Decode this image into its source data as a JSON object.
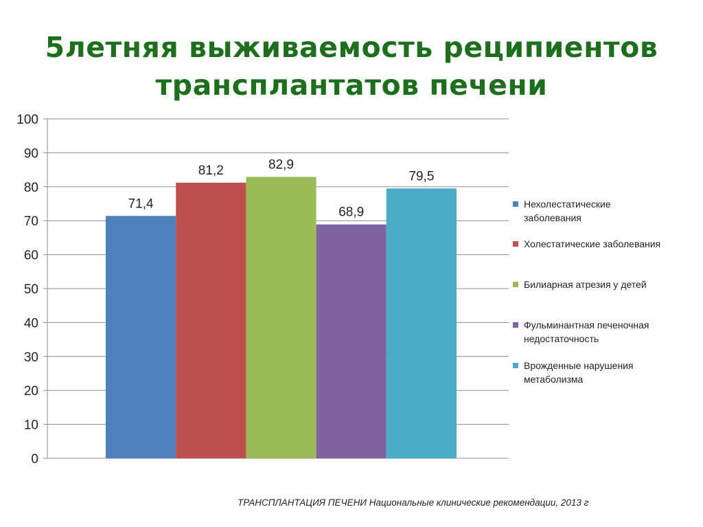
{
  "title": {
    "line1": "5летняя выживаемость реципиентов",
    "line2": "трансплантатов печени"
  },
  "chart_data": {
    "type": "bar",
    "series": [
      {
        "name": "Нехолестатические заболевания",
        "value": 71.4,
        "label": "71,4",
        "color": "#4f81bd"
      },
      {
        "name": "Холестатические заболевания",
        "value": 81.2,
        "label": "81,2",
        "color": "#c0504d"
      },
      {
        "name": "Билиарная атрезия у детей",
        "value": 82.9,
        "label": "82,9",
        "color": "#9bbb59"
      },
      {
        "name": "Фульминантная печеночная недостаточность",
        "value": 68.9,
        "label": "68,9",
        "color": "#8064a2"
      },
      {
        "name": "Врожденные нарушения метаболизма",
        "value": 79.5,
        "label": "79,5",
        "color": "#4bacc6"
      }
    ],
    "ylim": [
      0,
      100
    ],
    "yticks": [
      0,
      10,
      20,
      30,
      40,
      50,
      60,
      70,
      80,
      90,
      100
    ],
    "grid": true,
    "legend_position": "right"
  },
  "legend": [
    {
      "line1": "Нехолестатические",
      "line2": "заболевания"
    },
    {
      "line1": "Холестатические заболевания",
      "line2": ""
    },
    {
      "line1": "Билиарная атрезия у детей",
      "line2": ""
    },
    {
      "line1": "Фульминантная печеночная",
      "line2": "недостаточность"
    },
    {
      "line1": "Врожденные нарушения",
      "line2": "метаболизма"
    }
  ],
  "source": "ТРАНСПЛАНТАЦИЯ ПЕЧЕНИ Национальные клинические рекомендации, 2013 г"
}
